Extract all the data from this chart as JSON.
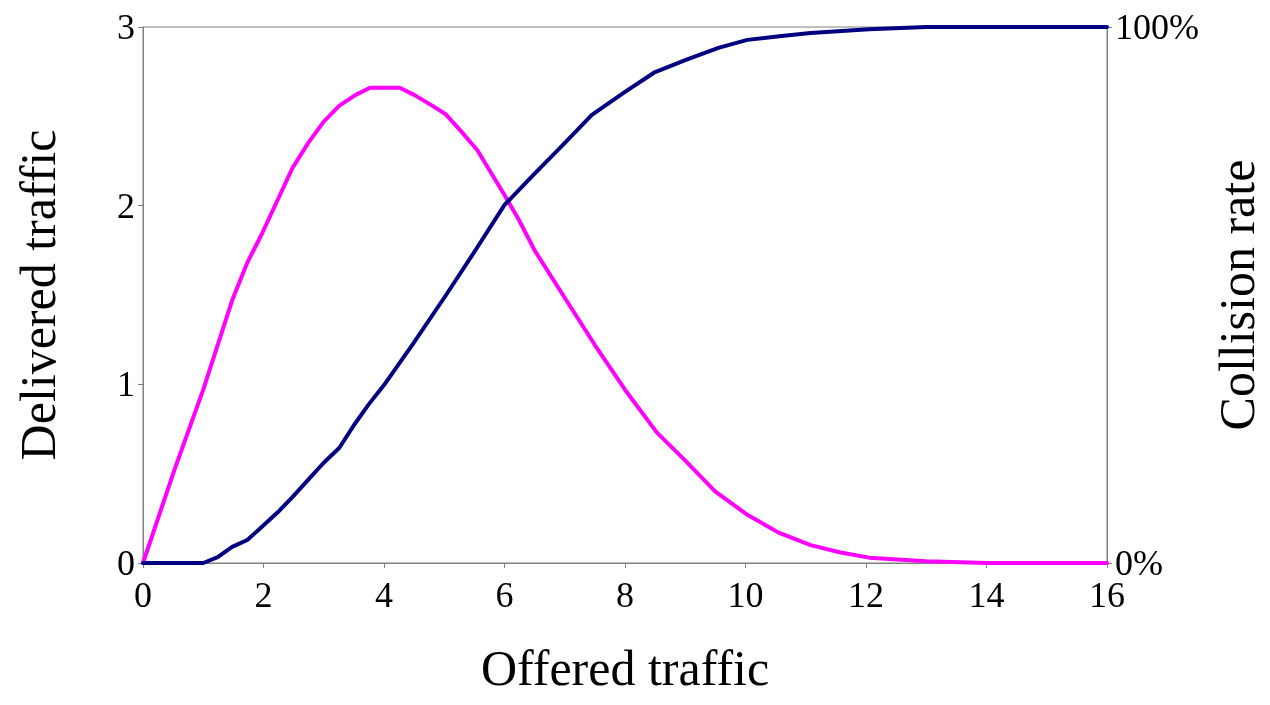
{
  "chart_data": {
    "type": "line",
    "xlabel": "Offered traffic",
    "ylabel": "Delivered traffic",
    "y2label": "Collision rate",
    "xlim": [
      0,
      16
    ],
    "xticks": [
      0,
      2,
      4,
      6,
      8,
      10,
      12,
      14,
      16
    ],
    "ylim": [
      0,
      3
    ],
    "yticks": [
      0,
      1,
      2,
      3
    ],
    "y2lim": [
      0,
      100
    ],
    "y2ticks": [
      {
        "value": 0,
        "label": "0%"
      },
      {
        "value": 100,
        "label": "100%"
      }
    ],
    "grid": false,
    "marker": "none",
    "line_style": "solid",
    "series": [
      {
        "color": "#ff00ff",
        "x": [
          0,
          0.52,
          1,
          1.48,
          1.73,
          1.97,
          2.48,
          2.74,
          3,
          3.26,
          3.53,
          3.77,
          4,
          4.26,
          4.5,
          4.8,
          5.03,
          5.27,
          5.55,
          6,
          6.24,
          6.5,
          6.97,
          7.5,
          8,
          8.53,
          8.98,
          9.5,
          10.03,
          10.55,
          11.08,
          11.56,
          12.05,
          13,
          14,
          16
        ],
        "values": [
          0,
          0.52,
          0.97,
          1.47,
          1.68,
          1.84,
          2.21,
          2.35,
          2.47,
          2.56,
          2.62,
          2.66,
          2.66,
          2.66,
          2.62,
          2.56,
          2.51,
          2.42,
          2.31,
          2.06,
          1.92,
          1.75,
          1.5,
          1.22,
          0.97,
          0.73,
          0.58,
          0.4,
          0.27,
          0.17,
          0.1,
          0.06,
          0.03,
          0.01,
          0,
          0
        ]
      },
      {
        "color": "#000080",
        "axis": "y2",
        "x": [
          0,
          0.27,
          0.52,
          0.76,
          1,
          1.24,
          1.48,
          1.73,
          1.97,
          2.24,
          2.48,
          2.74,
          3,
          3.26,
          3.5,
          3.74,
          4,
          4.47,
          5.03,
          5.52,
          6,
          6.48,
          6.97,
          7.45,
          8,
          8.5,
          9,
          9.55,
          10.03,
          10.6,
          11.08,
          12.05,
          13,
          16
        ],
        "values": [
          0,
          0,
          0,
          0,
          0,
          1.1,
          3,
          4.3,
          6.7,
          9.5,
          12.3,
          15.5,
          18.7,
          21.5,
          25.7,
          29.5,
          33.2,
          40.7,
          50,
          58.4,
          66.8,
          72.4,
          78,
          83.6,
          87.9,
          91.6,
          93.8,
          96.1,
          97.6,
          98.3,
          98.9,
          99.6,
          100,
          100
        ]
      }
    ]
  }
}
